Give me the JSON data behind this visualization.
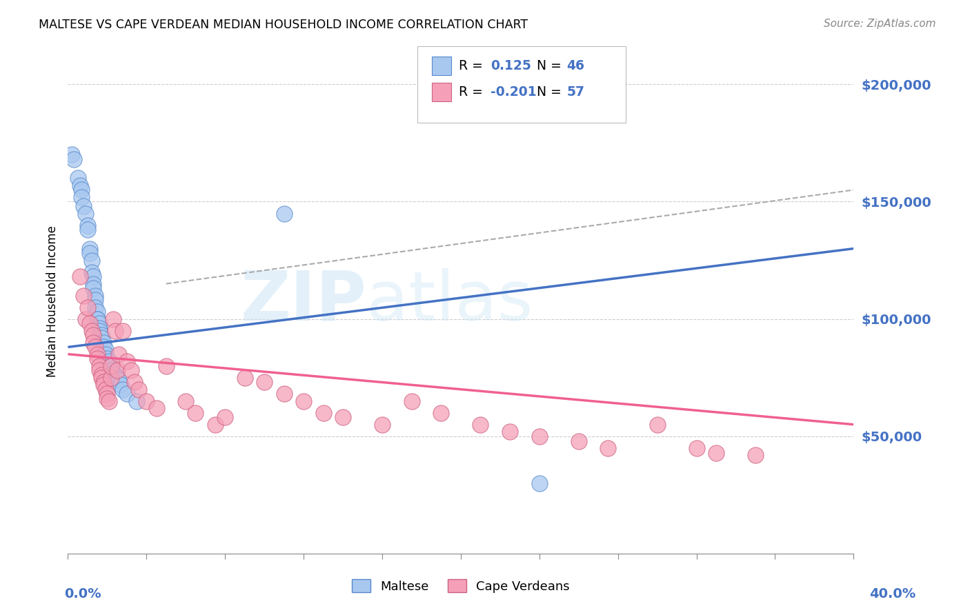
{
  "title": "MALTESE VS CAPE VERDEAN MEDIAN HOUSEHOLD INCOME CORRELATION CHART",
  "source": "Source: ZipAtlas.com",
  "ylabel": "Median Household Income",
  "ytick_labels": [
    "$50,000",
    "$100,000",
    "$150,000",
    "$200,000"
  ],
  "ytick_values": [
    50000,
    100000,
    150000,
    200000
  ],
  "ylim": [
    0,
    215000
  ],
  "xlim": [
    0.0,
    0.4
  ],
  "watermark_zip": "ZIP",
  "watermark_atlas": "atlas",
  "maltese_color": "#a8c8f0",
  "cape_verdean_color": "#f5a0b8",
  "line_maltese_color": "#4472c4",
  "line_cape_verdean_color": "#f06090",
  "dashed_line_color": "#aaaaaa",
  "maltese_color_edge": "#5588cc",
  "cape_verdean_color_edge": "#cc6080",
  "maltese_x": [
    0.002,
    0.003,
    0.005,
    0.006,
    0.007,
    0.007,
    0.008,
    0.009,
    0.01,
    0.01,
    0.011,
    0.011,
    0.012,
    0.012,
    0.013,
    0.013,
    0.013,
    0.014,
    0.014,
    0.014,
    0.015,
    0.015,
    0.015,
    0.016,
    0.016,
    0.016,
    0.017,
    0.017,
    0.018,
    0.018,
    0.019,
    0.019,
    0.02,
    0.021,
    0.022,
    0.022,
    0.023,
    0.024,
    0.025,
    0.026,
    0.027,
    0.028,
    0.03,
    0.035,
    0.24,
    0.11
  ],
  "maltese_y": [
    170000,
    168000,
    160000,
    157000,
    155000,
    152000,
    148000,
    145000,
    140000,
    138000,
    130000,
    128000,
    125000,
    120000,
    118000,
    115000,
    113000,
    110000,
    108000,
    105000,
    103000,
    100000,
    100000,
    98000,
    96000,
    95000,
    93000,
    92000,
    90000,
    88000,
    87000,
    85000,
    83000,
    82000,
    80000,
    78000,
    77000,
    76000,
    75000,
    74000,
    72000,
    70000,
    68000,
    65000,
    30000,
    145000
  ],
  "cape_verdean_x": [
    0.006,
    0.008,
    0.009,
    0.01,
    0.011,
    0.012,
    0.013,
    0.013,
    0.014,
    0.015,
    0.015,
    0.016,
    0.016,
    0.017,
    0.017,
    0.018,
    0.018,
    0.019,
    0.02,
    0.02,
    0.021,
    0.022,
    0.022,
    0.023,
    0.024,
    0.025,
    0.026,
    0.028,
    0.03,
    0.032,
    0.034,
    0.036,
    0.04,
    0.045,
    0.05,
    0.06,
    0.065,
    0.075,
    0.08,
    0.09,
    0.1,
    0.11,
    0.12,
    0.13,
    0.14,
    0.16,
    0.175,
    0.19,
    0.21,
    0.225,
    0.24,
    0.26,
    0.275,
    0.3,
    0.32,
    0.33,
    0.35
  ],
  "cape_verdean_y": [
    118000,
    110000,
    100000,
    105000,
    98000,
    95000,
    93000,
    90000,
    88000,
    85000,
    83000,
    80000,
    78000,
    76000,
    75000,
    73000,
    72000,
    70000,
    68000,
    66000,
    65000,
    75000,
    80000,
    100000,
    95000,
    78000,
    85000,
    95000,
    82000,
    78000,
    73000,
    70000,
    65000,
    62000,
    80000,
    65000,
    60000,
    55000,
    58000,
    75000,
    73000,
    68000,
    65000,
    60000,
    58000,
    55000,
    65000,
    60000,
    55000,
    52000,
    50000,
    48000,
    45000,
    55000,
    45000,
    43000,
    42000
  ],
  "maltese_line_x": [
    0.0,
    0.4
  ],
  "maltese_line_y": [
    88000,
    130000
  ],
  "cape_line_x": [
    0.0,
    0.4
  ],
  "cape_line_y": [
    85000,
    55000
  ],
  "dashed_line_x": [
    0.05,
    0.4
  ],
  "dashed_line_y": [
    115000,
    155000
  ]
}
